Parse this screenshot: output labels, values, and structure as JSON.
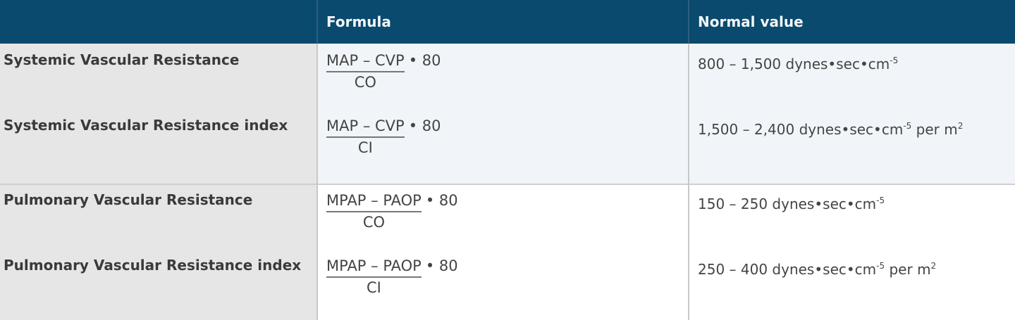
{
  "header": {
    "col1": "",
    "col2": "Formula",
    "col3": "Normal value"
  },
  "colors": {
    "header_bg": "#0a4a6e",
    "label_col_bg": "#e6e6e6",
    "band_bg": "#f1f5f9"
  },
  "rows": [
    {
      "label": "Systemic Vascular Resistance",
      "numerator": "MAP – CVP",
      "denominator": "CO",
      "multiplier": "• 80",
      "value": "800 – 1,500 dynes•sec•cm",
      "exp": "-5",
      "suffix": "",
      "suffix_exp": ""
    },
    {
      "label": "Systemic Vascular Resistance index",
      "numerator": "MAP – CVP",
      "denominator": "CI",
      "multiplier": "• 80",
      "value": "1,500 – 2,400 dynes•sec•cm",
      "exp": "-5",
      "suffix": " per m",
      "suffix_exp": "2"
    },
    {
      "label": "Pulmonary Vascular Resistance",
      "numerator": "MPAP – PAOP",
      "denominator": "CO",
      "multiplier": "• 80",
      "value": "150 – 250 dynes•sec•cm",
      "exp": "-5",
      "suffix": "",
      "suffix_exp": ""
    },
    {
      "label": "Pulmonary Vascular Resistance index",
      "numerator": "MPAP – PAOP",
      "denominator": "CI",
      "multiplier": "• 80",
      "value": "250 – 400 dynes•sec•cm",
      "exp": "-5",
      "suffix": " per m",
      "suffix_exp": "2"
    }
  ]
}
